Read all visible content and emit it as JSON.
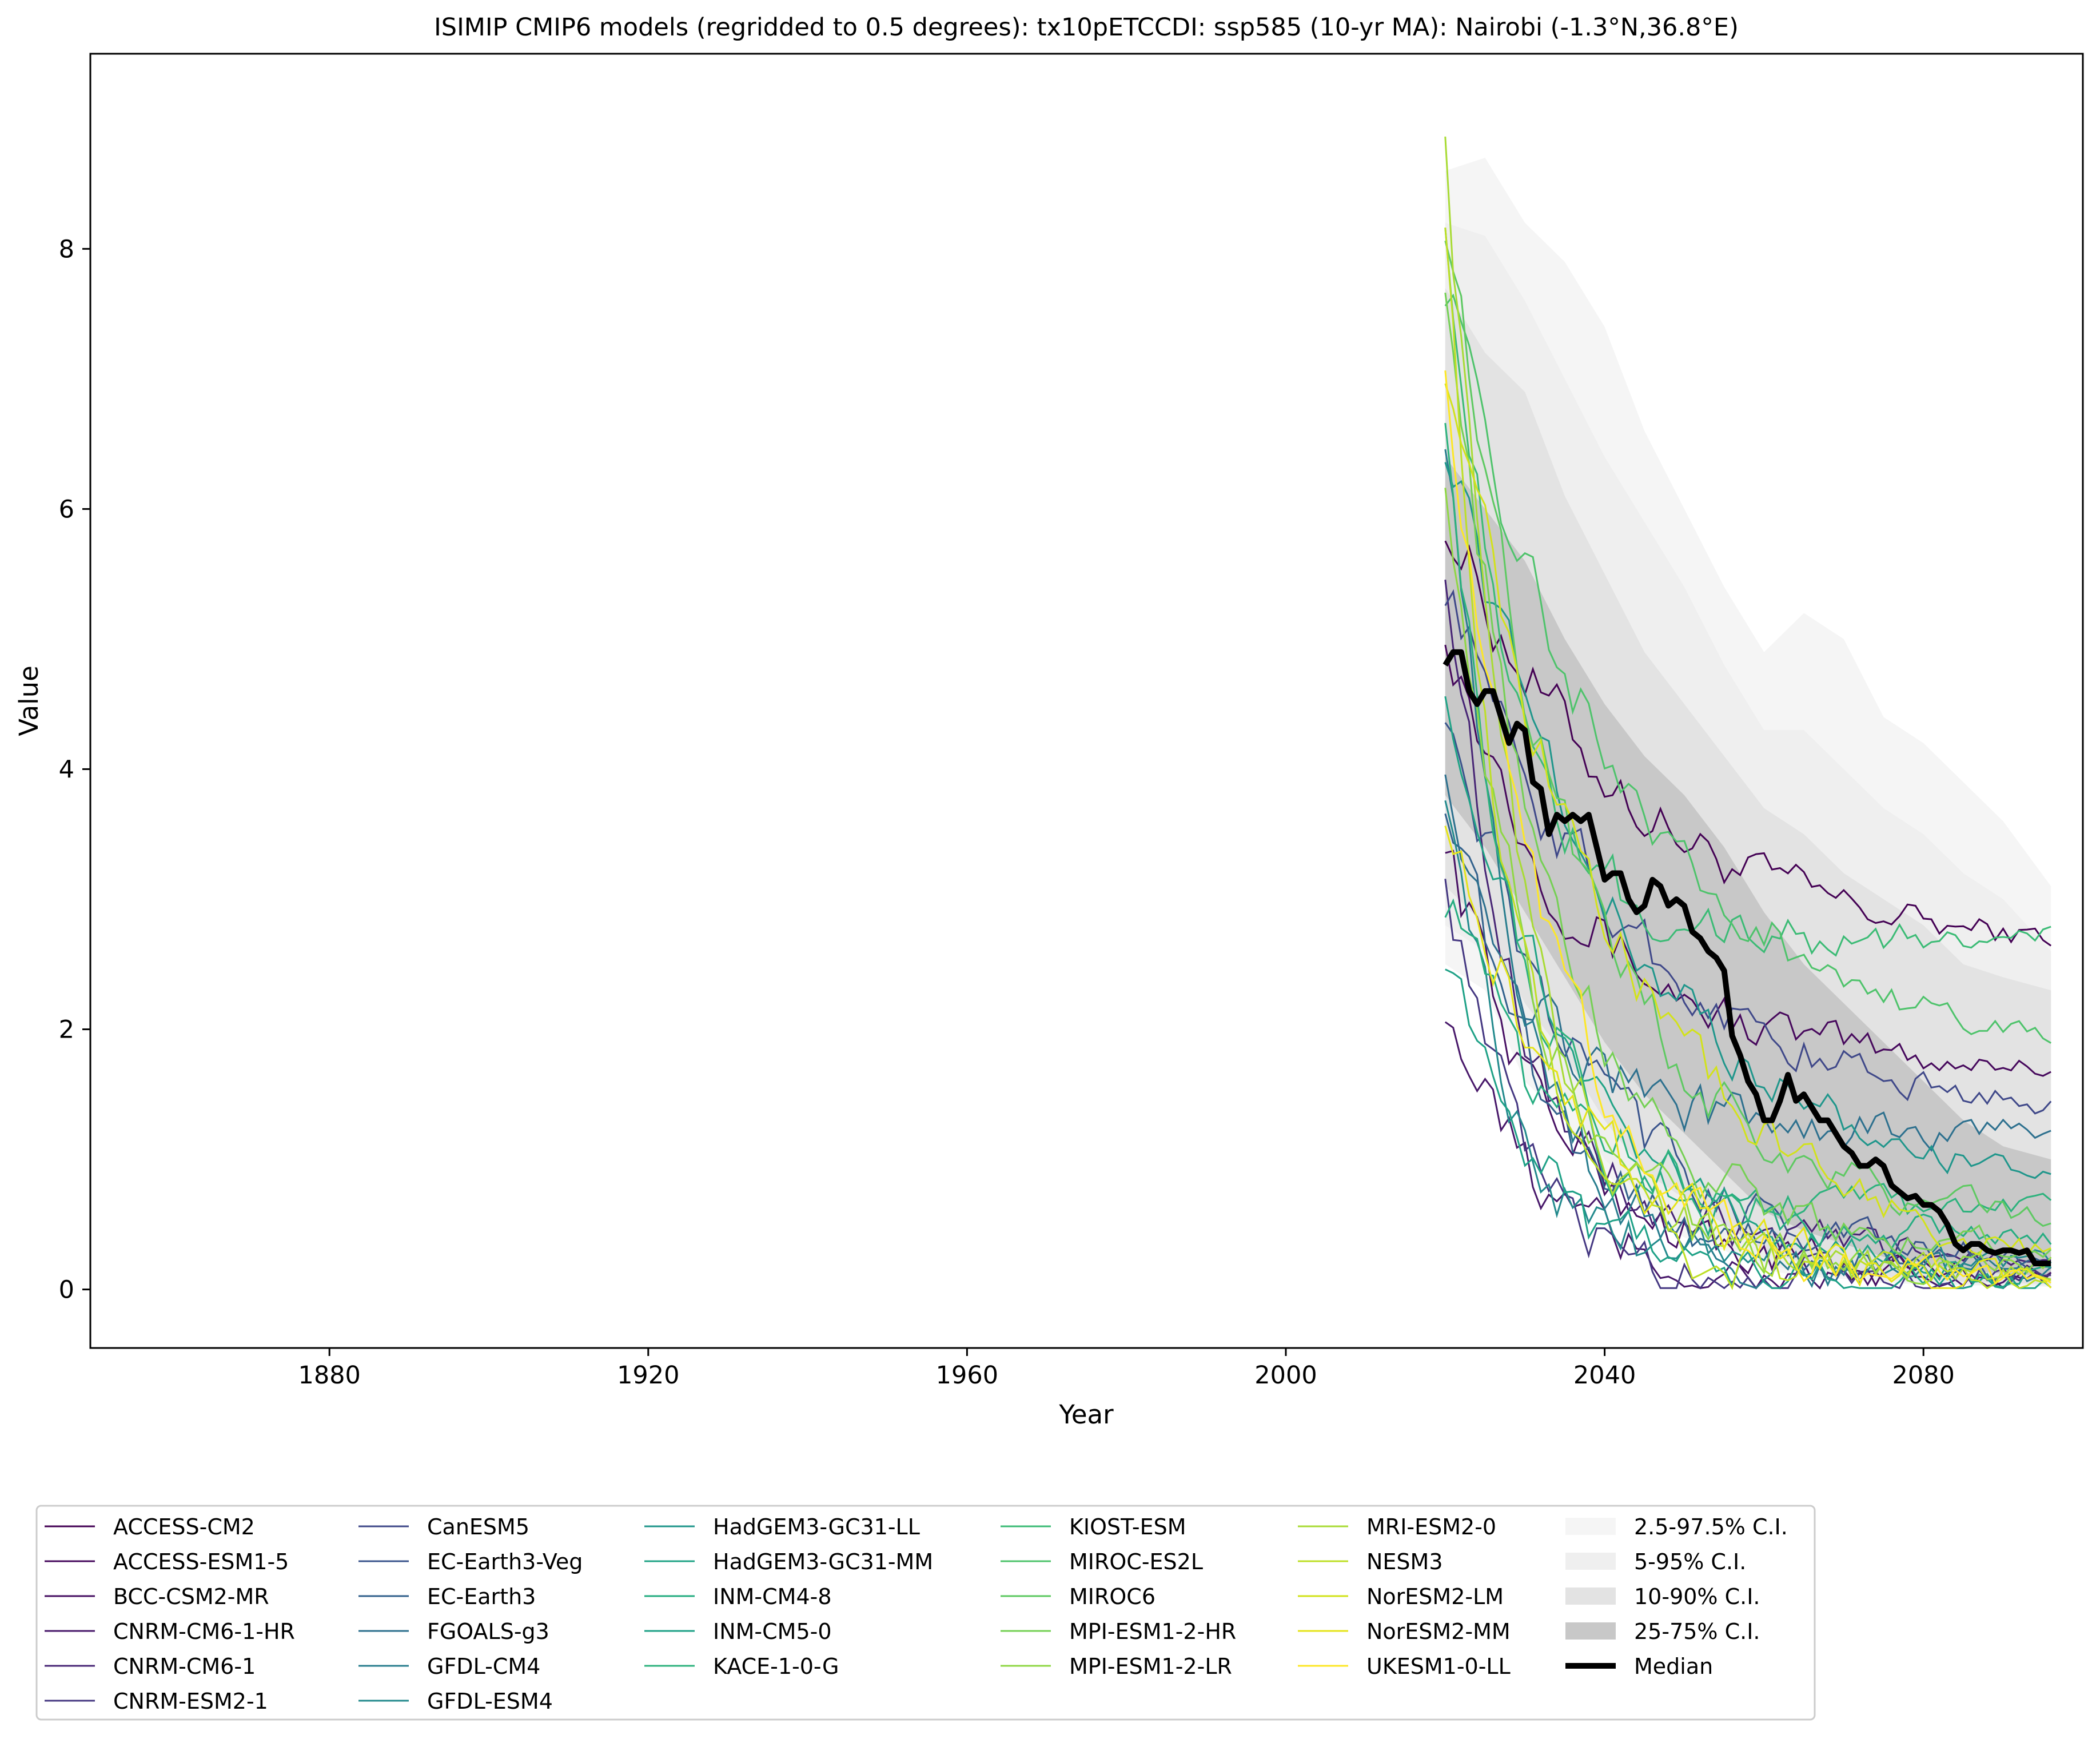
{
  "chart_data": {
    "type": "line",
    "title": "ISIMIP CMIP6 models (regridded to 0.5 degrees): tx10pETCCDI: ssp585 (10-yr MA): Nairobi (-1.3°N,36.8°E)",
    "xlabel": "Year",
    "ylabel": "Value",
    "xlim": [
      1850,
      2100
    ],
    "ylim": [
      -0.45,
      9.5
    ],
    "xticks": [
      1880,
      1920,
      1960,
      2000,
      2040,
      2080
    ],
    "yticks": [
      0,
      2,
      4,
      6,
      8
    ],
    "grid": false,
    "legend_position": "below plot, 6 columns",
    "median": {
      "name": "Median",
      "color": "#000000",
      "x": [
        2020,
        2021,
        2022,
        2023,
        2024,
        2025,
        2026,
        2027,
        2028,
        2029,
        2030,
        2031,
        2032,
        2033,
        2034,
        2035,
        2036,
        2037,
        2038,
        2039,
        2040,
        2041,
        2042,
        2043,
        2044,
        2045,
        2046,
        2047,
        2048,
        2049,
        2050,
        2051,
        2052,
        2053,
        2054,
        2055,
        2056,
        2057,
        2058,
        2059,
        2060,
        2061,
        2062,
        2063,
        2064,
        2065,
        2066,
        2067,
        2068,
        2069,
        2070,
        2071,
        2072,
        2073,
        2074,
        2075,
        2076,
        2077,
        2078,
        2079,
        2080,
        2081,
        2082,
        2083,
        2084,
        2085,
        2086,
        2087,
        2088,
        2089,
        2090,
        2091,
        2092,
        2093,
        2094,
        2095,
        2096
      ],
      "y": [
        4.8,
        4.9,
        4.9,
        4.6,
        4.5,
        4.6,
        4.6,
        4.4,
        4.2,
        4.35,
        4.3,
        3.9,
        3.85,
        3.5,
        3.65,
        3.6,
        3.65,
        3.6,
        3.65,
        3.4,
        3.15,
        3.2,
        3.2,
        3.0,
        2.9,
        2.95,
        3.15,
        3.1,
        2.95,
        3.0,
        2.95,
        2.75,
        2.7,
        2.6,
        2.55,
        2.45,
        1.95,
        1.8,
        1.6,
        1.5,
        1.3,
        1.3,
        1.45,
        1.65,
        1.45,
        1.5,
        1.4,
        1.3,
        1.3,
        1.2,
        1.1,
        1.05,
        0.95,
        0.95,
        1.0,
        0.95,
        0.8,
        0.75,
        0.7,
        0.72,
        0.65,
        0.65,
        0.6,
        0.5,
        0.35,
        0.3,
        0.35,
        0.35,
        0.3,
        0.28,
        0.3,
        0.3,
        0.28,
        0.3,
        0.2,
        0.2,
        0.2
      ]
    },
    "bands": [
      {
        "name": "2.5-97.5% C.I.",
        "color": "#f5f5f5",
        "x": [
          2020,
          2025,
          2030,
          2035,
          2040,
          2045,
          2050,
          2055,
          2060,
          2065,
          2070,
          2075,
          2080,
          2085,
          2090,
          2096
        ],
        "lower": [
          2.5,
          2.3,
          1.6,
          1.3,
          0.9,
          0.6,
          0.4,
          0.3,
          0.15,
          0.1,
          0.08,
          0.05,
          0.04,
          0.03,
          0.03,
          0.02
        ],
        "upper": [
          8.6,
          8.7,
          8.2,
          7.9,
          7.4,
          6.6,
          6.0,
          5.4,
          4.9,
          5.2,
          5.0,
          4.4,
          4.2,
          3.9,
          3.6,
          3.1
        ]
      },
      {
        "name": "5-95% C.I.",
        "color": "#efefef",
        "x": [
          2020,
          2025,
          2030,
          2035,
          2040,
          2045,
          2050,
          2055,
          2060,
          2065,
          2070,
          2075,
          2080,
          2085,
          2090,
          2096
        ],
        "lower": [
          2.8,
          2.6,
          1.9,
          1.5,
          1.0,
          0.7,
          0.5,
          0.35,
          0.2,
          0.12,
          0.1,
          0.07,
          0.05,
          0.04,
          0.03,
          0.03
        ],
        "upper": [
          8.2,
          8.1,
          7.6,
          7.0,
          6.4,
          5.9,
          5.4,
          4.8,
          4.3,
          4.3,
          4.0,
          3.7,
          3.5,
          3.2,
          3.0,
          2.6
        ]
      },
      {
        "name": "10-90% C.I.",
        "color": "#e3e3e3",
        "x": [
          2020,
          2025,
          2030,
          2035,
          2040,
          2045,
          2050,
          2055,
          2060,
          2065,
          2070,
          2075,
          2080,
          2085,
          2090,
          2096
        ],
        "lower": [
          3.1,
          2.8,
          2.2,
          1.8,
          1.3,
          0.9,
          0.7,
          0.5,
          0.3,
          0.2,
          0.15,
          0.1,
          0.08,
          0.06,
          0.05,
          0.04
        ],
        "upper": [
          7.7,
          7.2,
          6.9,
          6.1,
          5.5,
          4.9,
          4.5,
          4.1,
          3.7,
          3.5,
          3.2,
          3.0,
          2.8,
          2.5,
          2.4,
          2.3
        ]
      },
      {
        "name": "25-75% C.I.",
        "color": "#c8c8c8",
        "x": [
          2020,
          2025,
          2030,
          2035,
          2040,
          2045,
          2050,
          2055,
          2060,
          2065,
          2070,
          2075,
          2080,
          2085,
          2090,
          2096
        ],
        "lower": [
          3.8,
          3.4,
          2.9,
          2.4,
          1.9,
          1.5,
          1.2,
          0.9,
          0.6,
          0.45,
          0.35,
          0.25,
          0.2,
          0.15,
          0.12,
          0.1
        ],
        "upper": [
          6.4,
          6.0,
          5.6,
          5.0,
          4.5,
          4.1,
          3.8,
          3.4,
          2.9,
          2.5,
          2.2,
          1.9,
          1.6,
          1.3,
          1.1,
          1.0
        ]
      }
    ],
    "series": [
      {
        "name": "ACCESS-CM2",
        "color": "#440154",
        "start": 6.0,
        "end": 2.6
      },
      {
        "name": "ACCESS-ESM1-5",
        "color": "#46085c",
        "start": 5.2,
        "end": 1.7
      },
      {
        "name": "BCC-CSM2-MR",
        "color": "#471063",
        "start": 3.6,
        "end": 0.1
      },
      {
        "name": "CNRM-CM6-1-HR",
        "color": "#48186a",
        "start": 2.3,
        "end": 0.05
      },
      {
        "name": "CNRM-CM6-1",
        "color": "#472575",
        "start": 5.7,
        "end": 0.3
      },
      {
        "name": "CNRM-ESM2-1",
        "color": "#453882",
        "start": 3.4,
        "end": 0.1
      },
      {
        "name": "CanESM5",
        "color": "#3f4889",
        "start": 5.5,
        "end": 1.3
      },
      {
        "name": "EC-Earth3-Veg",
        "color": "#3a548c",
        "start": 4.6,
        "end": 0.2
      },
      {
        "name": "EC-Earth3",
        "color": "#33628d",
        "start": 3.9,
        "end": 0.15
      },
      {
        "name": "FGOALS-g3",
        "color": "#2d708e",
        "start": 4.2,
        "end": 1.2
      },
      {
        "name": "GFDL-CM4",
        "color": "#287d8e",
        "start": 6.7,
        "end": 0.1
      },
      {
        "name": "GFDL-ESM4",
        "color": "#238a8d",
        "start": 4.0,
        "end": 0.2
      },
      {
        "name": "HadGEM3-GC31-LL",
        "color": "#1f968b",
        "start": 6.6,
        "end": 0.7
      },
      {
        "name": "HadGEM3-GC31-MM",
        "color": "#20a386",
        "start": 4.8,
        "end": 0.05
      },
      {
        "name": "INM-CM4-8",
        "color": "#26ad81",
        "start": 3.1,
        "end": 0.4
      },
      {
        "name": "INM-CM5-0",
        "color": "#1fa187",
        "start": 2.7,
        "end": 0.02
      },
      {
        "name": "KACE-1-0-G",
        "color": "#2db27d",
        "start": 6.9,
        "end": 0.6
      },
      {
        "name": "KIOST-ESM",
        "color": "#3bbb75",
        "start": 8.4,
        "end": 2.7
      },
      {
        "name": "MIROC-ES2L",
        "color": "#4ec36b",
        "start": 7.8,
        "end": 1.8
      },
      {
        "name": "MIROC6",
        "color": "#5ec962",
        "start": 8.3,
        "end": 0.5
      },
      {
        "name": "MPI-ESM1-2-HR",
        "color": "#75d054",
        "start": 7.9,
        "end": 0.3
      },
      {
        "name": "MPI-ESM1-2-LR",
        "color": "#8fd744",
        "start": 6.4,
        "end": 0.2
      },
      {
        "name": "MRI-ESM2-0",
        "color": "#a8db34",
        "start": 9.1,
        "end": 0.15
      },
      {
        "name": "NESM3",
        "color": "#bddf26",
        "start": 8.4,
        "end": 0.1
      },
      {
        "name": "NorESM2-LM",
        "color": "#d2e21b",
        "start": 7.2,
        "end": 0.05
      },
      {
        "name": "NorESM2-MM",
        "color": "#e5e419",
        "start": 3.8,
        "end": 0.05
      },
      {
        "name": "UKESM1-0-LL",
        "color": "#fde725",
        "start": 7.3,
        "end": 0.05
      }
    ],
    "legend": [
      "ACCESS-CM2",
      "ACCESS-ESM1-5",
      "BCC-CSM2-MR",
      "CNRM-CM6-1-HR",
      "CNRM-CM6-1",
      "CNRM-ESM2-1",
      "CanESM5",
      "EC-Earth3-Veg",
      "EC-Earth3",
      "FGOALS-g3",
      "GFDL-CM4",
      "GFDL-ESM4",
      "HadGEM3-GC31-LL",
      "HadGEM3-GC31-MM",
      "INM-CM4-8",
      "INM-CM5-0",
      "KACE-1-0-G",
      "KIOST-ESM",
      "MIROC-ES2L",
      "MIROC6",
      "MPI-ESM1-2-HR",
      "MPI-ESM1-2-LR",
      "MRI-ESM2-0",
      "NESM3",
      "NorESM2-LM",
      "NorESM2-MM",
      "UKESM1-0-LL",
      "2.5-97.5% C.I.",
      "5-95% C.I.",
      "10-90% C.I.",
      "25-75% C.I.",
      "Median"
    ]
  }
}
